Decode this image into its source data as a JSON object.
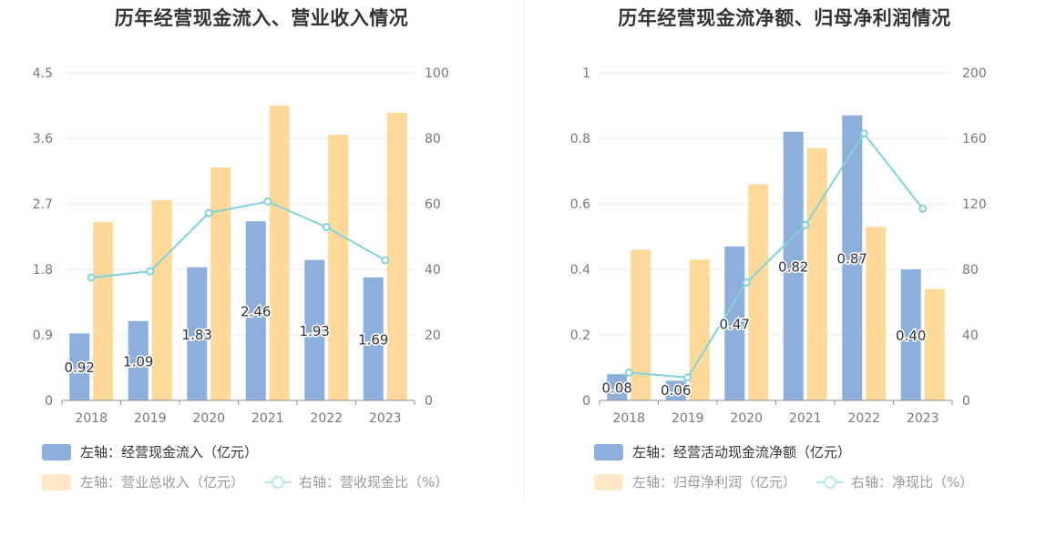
{
  "colors": {
    "bar_primary": "#8eaedb",
    "bar_secondary": "#ffd999",
    "line": "#7fd3da",
    "grid": "#e3e8f1",
    "axis_text": "#777777"
  },
  "chart_data": [
    {
      "type": "bar",
      "title": "历年经营现金流入、营业收入情况",
      "categories": [
        "2018",
        "2019",
        "2020",
        "2021",
        "2022",
        "2023"
      ],
      "series": [
        {
          "name": "左轴：经营现金流入（亿元）",
          "axis": "left",
          "values": [
            0.92,
            1.09,
            1.83,
            2.46,
            1.93,
            1.69
          ],
          "labels": [
            "0.92",
            "1.09",
            "1.83",
            "2.46",
            "1.93",
            "1.69"
          ]
        },
        {
          "name": "左轴：营业总收入（亿元）",
          "axis": "left",
          "values": [
            2.45,
            2.75,
            3.2,
            4.05,
            3.65,
            3.95
          ]
        },
        {
          "name": "右轴：营收现金比（%）",
          "axis": "right",
          "type": "line",
          "values": [
            37.5,
            39.4,
            57.2,
            60.7,
            52.9,
            42.8
          ]
        }
      ],
      "left_axis": {
        "ticks": [
          "0",
          "0.9",
          "1.8",
          "2.7",
          "3.6",
          "4.5"
        ],
        "ylim": [
          0,
          4.5
        ]
      },
      "right_axis": {
        "ticks": [
          "0",
          "20",
          "40",
          "60",
          "80",
          "100"
        ],
        "ylim": [
          0,
          100
        ]
      },
      "grid": true,
      "legend_position": "bottom-left"
    },
    {
      "type": "bar",
      "title": "历年经营现金流净额、归母净利润情况",
      "categories": [
        "2018",
        "2019",
        "2020",
        "2021",
        "2022",
        "2023"
      ],
      "series": [
        {
          "name": "左轴：经营活动现金流净额（亿元）",
          "axis": "left",
          "values": [
            0.08,
            0.06,
            0.47,
            0.82,
            0.87,
            0.4
          ],
          "labels": [
            "0.08",
            "0.06",
            "0.47",
            "0.82",
            "0.87",
            "0.40"
          ]
        },
        {
          "name": "左轴：归母净利润（亿元）",
          "axis": "left",
          "values": [
            0.46,
            0.43,
            0.66,
            0.77,
            0.53,
            0.34
          ]
        },
        {
          "name": "右轴：净现比（%）",
          "axis": "right",
          "type": "line",
          "values": [
            17,
            14,
            72,
            107,
            163,
            117
          ]
        }
      ],
      "left_axis": {
        "ticks": [
          "0",
          "0.2",
          "0.4",
          "0.6",
          "0.8",
          "1"
        ],
        "ylim": [
          0,
          1
        ]
      },
      "right_axis": {
        "ticks": [
          "0",
          "40",
          "80",
          "120",
          "160",
          "200"
        ],
        "ylim": [
          0,
          200
        ]
      },
      "grid": true,
      "legend_position": "bottom-left"
    }
  ]
}
